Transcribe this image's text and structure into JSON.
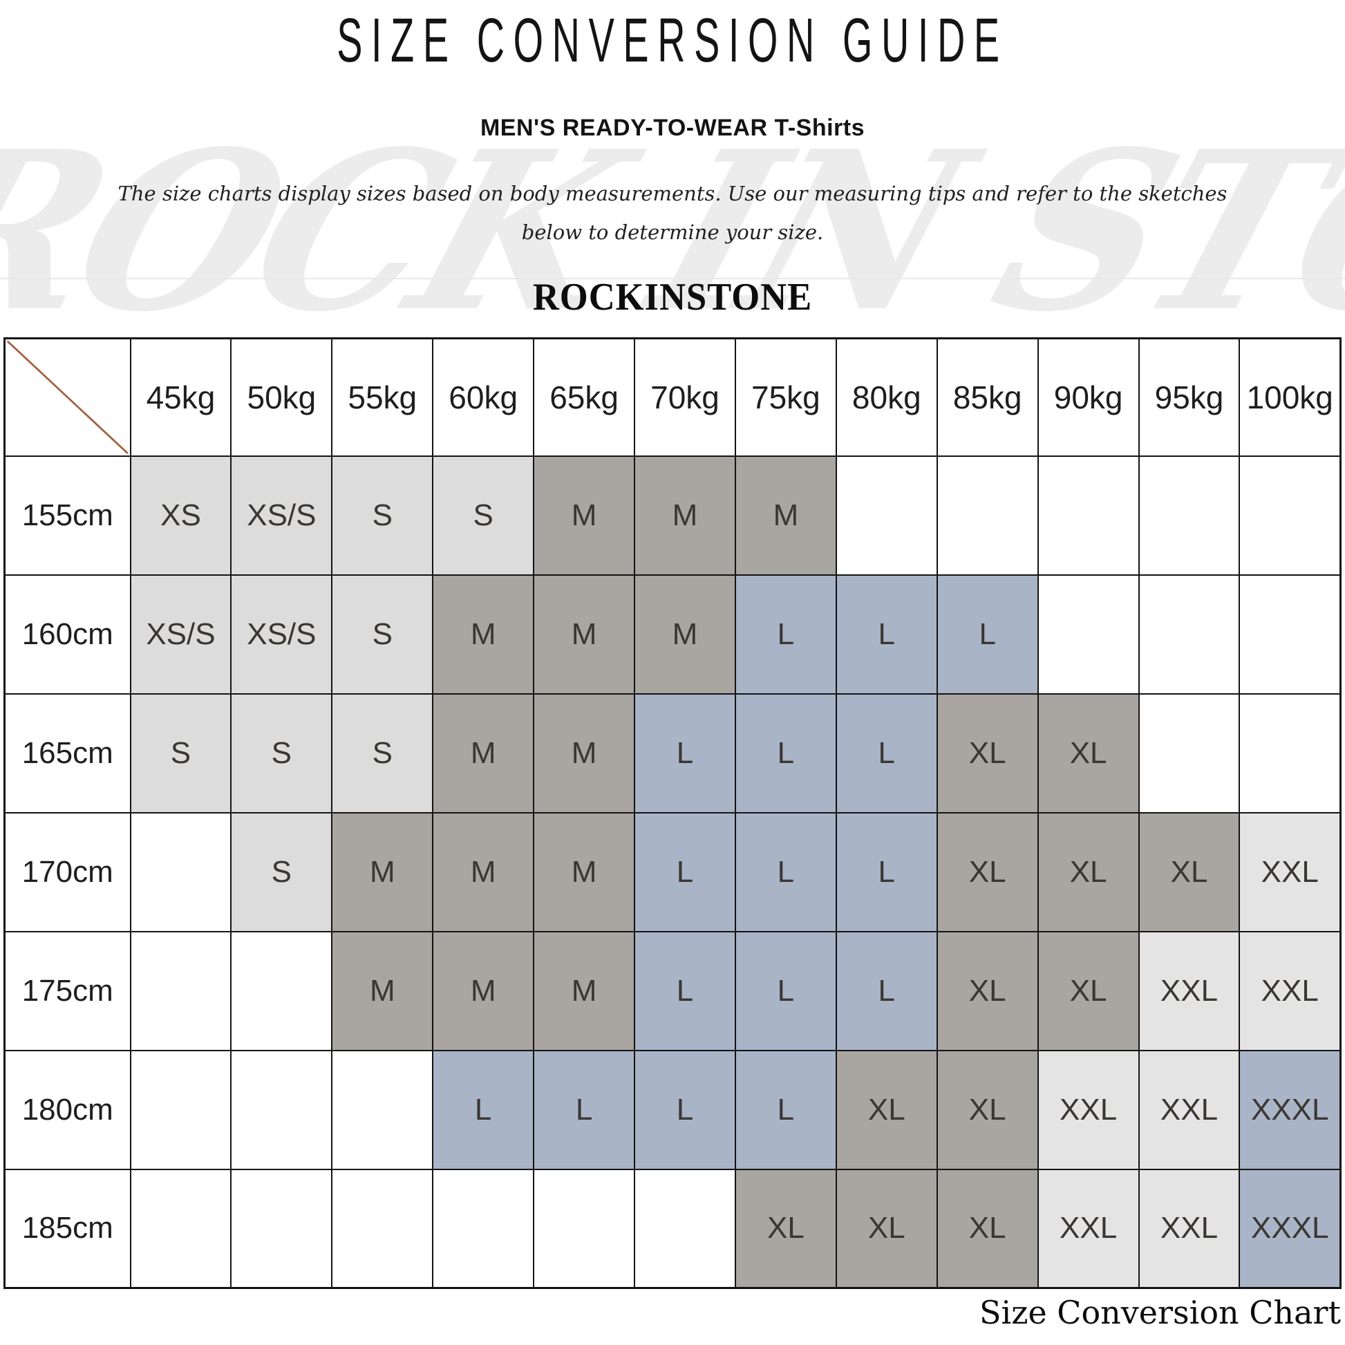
{
  "header": {
    "title": "SIZE CONVERSION GUIDE",
    "subtitle_category": "MEN'S READY-TO-WEAR",
    "subtitle_product": "T-Shirts",
    "description_line1": "The size charts display sizes based on body measurements.  Use our measuring tips and refer to the sketches",
    "description_line2": "below to determine your size.",
    "brand": "ROCKINSTONE",
    "watermark": "ROCK IN STONE"
  },
  "footer": {
    "caption": "Size Conversion Chart"
  },
  "colors": {
    "cell_light": "#dcdcdc",
    "cell_gray": "#a9a5a1",
    "cell_blue": "#a9b4c7",
    "cell_lighter": "#e4e4e4",
    "cell_blank": "#ffffff",
    "diagonal_line": "#a3603e",
    "grid_border": "#141414"
  },
  "table": {
    "weight_columns": [
      "45kg",
      "50kg",
      "55kg",
      "60kg",
      "65kg",
      "70kg",
      "75kg",
      "80kg",
      "85kg",
      "90kg",
      "95kg",
      "100kg"
    ],
    "rows": [
      {
        "height": "155cm",
        "cells": [
          {
            "size": "XS",
            "bg": "light"
          },
          {
            "size": "XS/S",
            "bg": "light"
          },
          {
            "size": "S",
            "bg": "light"
          },
          {
            "size": "S",
            "bg": "light"
          },
          {
            "size": "M",
            "bg": "gray"
          },
          {
            "size": "M",
            "bg": "gray"
          },
          {
            "size": "M",
            "bg": "gray"
          },
          {
            "size": "",
            "bg": "white"
          },
          {
            "size": "",
            "bg": "white"
          },
          {
            "size": "",
            "bg": "white"
          },
          {
            "size": "",
            "bg": "white"
          },
          {
            "size": "",
            "bg": "white"
          }
        ]
      },
      {
        "height": "160cm",
        "cells": [
          {
            "size": "XS/S",
            "bg": "light"
          },
          {
            "size": "XS/S",
            "bg": "light"
          },
          {
            "size": "S",
            "bg": "light"
          },
          {
            "size": "M",
            "bg": "gray"
          },
          {
            "size": "M",
            "bg": "gray"
          },
          {
            "size": "M",
            "bg": "gray"
          },
          {
            "size": "L",
            "bg": "blue"
          },
          {
            "size": "L",
            "bg": "blue"
          },
          {
            "size": "L",
            "bg": "blue"
          },
          {
            "size": "",
            "bg": "white"
          },
          {
            "size": "",
            "bg": "white"
          },
          {
            "size": "",
            "bg": "white"
          }
        ]
      },
      {
        "height": "165cm",
        "cells": [
          {
            "size": "S",
            "bg": "light"
          },
          {
            "size": "S",
            "bg": "light"
          },
          {
            "size": "S",
            "bg": "light"
          },
          {
            "size": "M",
            "bg": "gray"
          },
          {
            "size": "M",
            "bg": "gray"
          },
          {
            "size": "L",
            "bg": "blue"
          },
          {
            "size": "L",
            "bg": "blue"
          },
          {
            "size": "L",
            "bg": "blue"
          },
          {
            "size": "XL",
            "bg": "gray"
          },
          {
            "size": "XL",
            "bg": "gray"
          },
          {
            "size": "",
            "bg": "white"
          },
          {
            "size": "",
            "bg": "white"
          }
        ]
      },
      {
        "height": "170cm",
        "cells": [
          {
            "size": "",
            "bg": "white"
          },
          {
            "size": "S",
            "bg": "light"
          },
          {
            "size": "M",
            "bg": "gray"
          },
          {
            "size": "M",
            "bg": "gray"
          },
          {
            "size": "M",
            "bg": "gray"
          },
          {
            "size": "L",
            "bg": "blue"
          },
          {
            "size": "L",
            "bg": "blue"
          },
          {
            "size": "L",
            "bg": "blue"
          },
          {
            "size": "XL",
            "bg": "gray"
          },
          {
            "size": "XL",
            "bg": "gray"
          },
          {
            "size": "XL",
            "bg": "gray"
          },
          {
            "size": "XXL",
            "bg": "lighter"
          }
        ]
      },
      {
        "height": "175cm",
        "cells": [
          {
            "size": "",
            "bg": "white"
          },
          {
            "size": "",
            "bg": "white"
          },
          {
            "size": "M",
            "bg": "gray"
          },
          {
            "size": "M",
            "bg": "gray"
          },
          {
            "size": "M",
            "bg": "gray"
          },
          {
            "size": "L",
            "bg": "blue"
          },
          {
            "size": "L",
            "bg": "blue"
          },
          {
            "size": "L",
            "bg": "blue"
          },
          {
            "size": "XL",
            "bg": "gray"
          },
          {
            "size": "XL",
            "bg": "gray"
          },
          {
            "size": "XXL",
            "bg": "lighter"
          },
          {
            "size": "XXL",
            "bg": "lighter"
          }
        ]
      },
      {
        "height": "180cm",
        "cells": [
          {
            "size": "",
            "bg": "white"
          },
          {
            "size": "",
            "bg": "white"
          },
          {
            "size": "",
            "bg": "white"
          },
          {
            "size": "L",
            "bg": "blue"
          },
          {
            "size": "L",
            "bg": "blue"
          },
          {
            "size": "L",
            "bg": "blue"
          },
          {
            "size": "L",
            "bg": "blue"
          },
          {
            "size": "XL",
            "bg": "gray"
          },
          {
            "size": "XL",
            "bg": "gray"
          },
          {
            "size": "XXL",
            "bg": "lighter"
          },
          {
            "size": "XXL",
            "bg": "lighter"
          },
          {
            "size": "XXXL",
            "bg": "blue"
          }
        ]
      },
      {
        "height": "185cm",
        "cells": [
          {
            "size": "",
            "bg": "white"
          },
          {
            "size": "",
            "bg": "white"
          },
          {
            "size": "",
            "bg": "white"
          },
          {
            "size": "",
            "bg": "white"
          },
          {
            "size": "",
            "bg": "white"
          },
          {
            "size": "",
            "bg": "white"
          },
          {
            "size": "XL",
            "bg": "gray"
          },
          {
            "size": "XL",
            "bg": "gray"
          },
          {
            "size": "XL",
            "bg": "gray"
          },
          {
            "size": "XXL",
            "bg": "lighter"
          },
          {
            "size": "XXL",
            "bg": "lighter"
          },
          {
            "size": "XXXL",
            "bg": "blue"
          }
        ]
      }
    ]
  }
}
